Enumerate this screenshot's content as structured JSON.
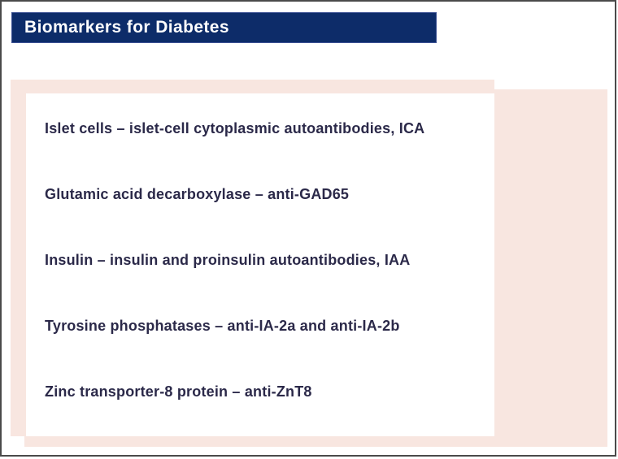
{
  "slide": {
    "title": "Biomarkers for Diabetes",
    "items": [
      "Islet cells – islet-cell cytoplasmic autoantibodies, ICA",
      "Glutamic acid decarboxylase – anti-GAD65",
      "Insulin – insulin and proinsulin autoantibodies, IAA",
      "Tyrosine phosphatases – anti-IA-2a and anti-IA-2b",
      "Zinc transporter-8 protein – anti-ZnT8"
    ],
    "colors": {
      "navy": "#0d2c69",
      "pink": "#f8e6e0",
      "text-dark": "#2b2949",
      "frame-border": "#4a4a4a"
    }
  }
}
